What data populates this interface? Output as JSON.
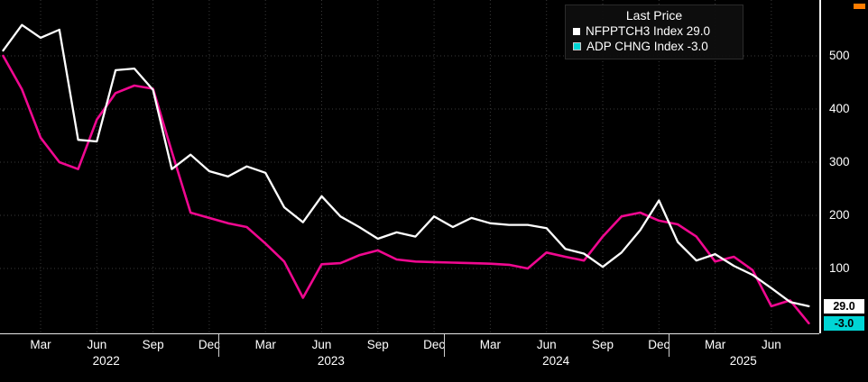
{
  "legend": {
    "title": "Last Price",
    "items": [
      {
        "label": "NFPPTCH3 Index",
        "value": "29.0",
        "text": "NFPPTCH3 Index 29.0"
      },
      {
        "label": "ADP CHNG Index",
        "value": "-3.0",
        "text": "ADP CHNG Index -3.0"
      }
    ]
  },
  "axis": {
    "badges": [
      {
        "text": "29.0",
        "bg": "#ffffff",
        "value": 29.0
      },
      {
        "text": "-3.0",
        "bg": "#00d5d5",
        "value": -3.0
      }
    ],
    "accent_orange": "#ff7d00"
  },
  "chart_data": {
    "type": "line",
    "title": "Last Price",
    "background": "#000000",
    "grid": "dotted",
    "grid_color": "#3a3a3a",
    "legend_position": "top-right",
    "ylim": [
      -22,
      605
    ],
    "yticks": [
      100,
      200,
      300,
      400,
      500
    ],
    "categories": [
      "2022-01",
      "2022-02",
      "2022-03",
      "2022-04",
      "2022-05",
      "2022-06",
      "2022-07",
      "2022-08",
      "2022-09",
      "2022-10",
      "2022-11",
      "2022-12",
      "2023-01",
      "2023-02",
      "2023-03",
      "2023-04",
      "2023-05",
      "2023-06",
      "2023-07",
      "2023-08",
      "2023-09",
      "2023-10",
      "2023-11",
      "2023-12",
      "2024-01",
      "2024-02",
      "2024-03",
      "2024-04",
      "2024-05",
      "2024-06",
      "2024-07",
      "2024-08",
      "2024-09",
      "2024-10",
      "2024-11",
      "2024-12",
      "2025-01",
      "2025-02",
      "2025-03",
      "2025-04",
      "2025-05",
      "2025-06",
      "2025-07",
      "2025-08"
    ],
    "x_tick_labels": [
      "Mar",
      "Jun",
      "Sep",
      "Dec",
      "Mar",
      "Jun",
      "Sep",
      "Dec",
      "Mar",
      "Jun",
      "Sep",
      "Dec",
      "Mar",
      "Jun"
    ],
    "x_tick_month_indices": [
      2,
      5,
      8,
      11,
      14,
      17,
      20,
      23,
      26,
      29,
      32,
      35,
      38,
      41
    ],
    "years": [
      {
        "label": "2022",
        "center_index": 5.5
      },
      {
        "label": "2023",
        "center_index": 17.5
      },
      {
        "label": "2024",
        "center_index": 29.5
      },
      {
        "label": "2025",
        "center_index": 39.5
      }
    ],
    "year_separator_indices": [
      11.5,
      23.5,
      35.5
    ],
    "series": [
      {
        "name": "NFPPTCH3 Index",
        "last": 29.0,
        "color": "#ffffff",
        "values": [
          510,
          558,
          534,
          549,
          342,
          339,
          473,
          476,
          436,
          287,
          314,
          283,
          273,
          292,
          280,
          215,
          187,
          236,
          198,
          178,
          156,
          168,
          160,
          198,
          178,
          195,
          185,
          182,
          182,
          176,
          137,
          128,
          103,
          130,
          172,
          228,
          150,
          115,
          127,
          105,
          88,
          63,
          37,
          29
        ]
      },
      {
        "name": "ADP CHNG Index",
        "last": -3.0,
        "color": "#f00890",
        "marker_color": "#00d5d5",
        "values": [
          500,
          437,
          346,
          300,
          287,
          380,
          430,
          444,
          438,
          320,
          205,
          195,
          185,
          178,
          147,
          113,
          45,
          108,
          110,
          125,
          134,
          117,
          113,
          112,
          111,
          110,
          109,
          107,
          100,
          130,
          122,
          115,
          160,
          198,
          205,
          190,
          183,
          160,
          113,
          122,
          97,
          29,
          40,
          -3
        ]
      }
    ]
  }
}
